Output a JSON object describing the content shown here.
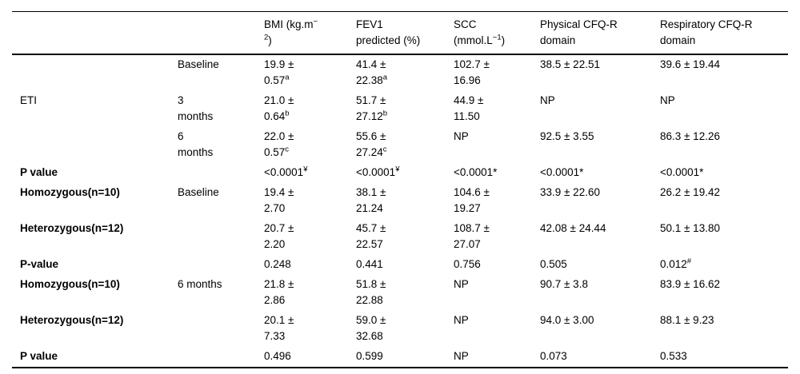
{
  "colors": {
    "background": "#ffffff",
    "text": "#000000",
    "rule": "#000000"
  },
  "table": {
    "columns": [
      {
        "id": "group",
        "header": []
      },
      {
        "id": "time",
        "header": []
      },
      {
        "id": "bmi",
        "header": [
          {
            "t": "BMI (kg.m"
          },
          {
            "t": "−",
            "sup": true
          },
          {
            "t": "\n"
          },
          {
            "t": "2",
            "sup": true
          },
          {
            "t": ")"
          }
        ]
      },
      {
        "id": "fev1",
        "header": [
          {
            "t": "FEV1\npredicted (%)"
          }
        ]
      },
      {
        "id": "scc",
        "header": [
          {
            "t": "SCC\n(mmol.L"
          },
          {
            "t": "−1",
            "sup": true
          },
          {
            "t": ")"
          }
        ]
      },
      {
        "id": "physical",
        "header": [
          {
            "t": "Physical CFQ-R\ndomain"
          }
        ]
      },
      {
        "id": "respiratory",
        "header": [
          {
            "t": "Respiratory CFQ-R\ndomain"
          }
        ]
      }
    ],
    "rows": [
      {
        "label": "",
        "label_bold": false,
        "time": "Baseline",
        "cells": [
          [
            {
              "t": "19.9 ±\n0.57"
            },
            {
              "t": "a",
              "sup": true
            }
          ],
          [
            {
              "t": "41.4 ±\n22.38"
            },
            {
              "t": "a",
              "sup": true
            }
          ],
          [
            {
              "t": "102.7 ±\n16.96"
            }
          ],
          [
            {
              "t": "38.5 ± 22.51"
            }
          ],
          [
            {
              "t": "39.6 ± 19.44"
            }
          ]
        ]
      },
      {
        "label": "ETI",
        "label_bold": false,
        "time": "3\nmonths",
        "cells": [
          [
            {
              "t": "21.0 ±\n0.64"
            },
            {
              "t": "b",
              "sup": true
            }
          ],
          [
            {
              "t": "51.7 ±\n27.12"
            },
            {
              "t": "b",
              "sup": true
            }
          ],
          [
            {
              "t": "44.9 ±\n11.50"
            }
          ],
          [
            {
              "t": "NP"
            }
          ],
          [
            {
              "t": "NP"
            }
          ]
        ]
      },
      {
        "label": "",
        "label_bold": false,
        "time": "6\nmonths",
        "cells": [
          [
            {
              "t": "22.0 ±\n0.57"
            },
            {
              "t": "c",
              "sup": true
            }
          ],
          [
            {
              "t": "55.6 ±\n27.24"
            },
            {
              "t": "c",
              "sup": true
            }
          ],
          [
            {
              "t": "NP"
            }
          ],
          [
            {
              "t": "92.5 ± 3.55"
            }
          ],
          [
            {
              "t": "86.3 ± 12.26"
            }
          ]
        ]
      },
      {
        "label": "P value",
        "label_bold": true,
        "time": "",
        "cells": [
          [
            {
              "t": "<0.0001"
            },
            {
              "t": "¥",
              "sup": true
            }
          ],
          [
            {
              "t": "<0.0001"
            },
            {
              "t": "¥",
              "sup": true
            }
          ],
          [
            {
              "t": "<0.0001*"
            }
          ],
          [
            {
              "t": "<0.0001*"
            }
          ],
          [
            {
              "t": "<0.0001*"
            }
          ]
        ]
      },
      {
        "label": "Homozygous(n=10)",
        "label_bold": true,
        "time": "Baseline",
        "cells": [
          [
            {
              "t": "19.4 ±\n2.70"
            }
          ],
          [
            {
              "t": "38.1 ±\n21.24"
            }
          ],
          [
            {
              "t": "104.6 ±\n19.27"
            }
          ],
          [
            {
              "t": "33.9 ± 22.60"
            }
          ],
          [
            {
              "t": "26.2 ± 19.42"
            }
          ]
        ]
      },
      {
        "label": "Heterozygous(n=12)",
        "label_bold": true,
        "time": "",
        "cells": [
          [
            {
              "t": "20.7 ±\n2.20"
            }
          ],
          [
            {
              "t": "45.7 ±\n22.57"
            }
          ],
          [
            {
              "t": "108.7 ±\n27.07"
            }
          ],
          [
            {
              "t": "42.08 ± 24.44"
            }
          ],
          [
            {
              "t": "50.1 ± 13.80"
            }
          ]
        ]
      },
      {
        "label": "P-value",
        "label_bold": true,
        "time": "",
        "cells": [
          [
            {
              "t": "0.248"
            }
          ],
          [
            {
              "t": "0.441"
            }
          ],
          [
            {
              "t": "0.756"
            }
          ],
          [
            {
              "t": "0.505"
            }
          ],
          [
            {
              "t": "0.012"
            },
            {
              "t": "#",
              "sup": true
            }
          ]
        ]
      },
      {
        "label": "Homozygous(n=10)",
        "label_bold": true,
        "time": "6 months",
        "cells": [
          [
            {
              "t": "21.8 ±\n2.86"
            }
          ],
          [
            {
              "t": "51.8 ±\n22.88"
            }
          ],
          [
            {
              "t": "NP"
            }
          ],
          [
            {
              "t": "90.7 ± 3.8"
            }
          ],
          [
            {
              "t": "83.9 ± 16.62"
            }
          ]
        ]
      },
      {
        "label": "Heterozygous(n=12)",
        "label_bold": true,
        "time": "",
        "cells": [
          [
            {
              "t": "20.1 ±\n7.33"
            }
          ],
          [
            {
              "t": "59.0 ±\n32.68"
            }
          ],
          [
            {
              "t": "NP"
            }
          ],
          [
            {
              "t": "94.0 ± 3.00"
            }
          ],
          [
            {
              "t": "88.1 ± 9.23"
            }
          ]
        ]
      },
      {
        "label": "P value",
        "label_bold": true,
        "time": "",
        "cells": [
          [
            {
              "t": "0.496"
            }
          ],
          [
            {
              "t": "0.599"
            }
          ],
          [
            {
              "t": "NP"
            }
          ],
          [
            {
              "t": "0.073"
            }
          ],
          [
            {
              "t": "0.533"
            }
          ]
        ]
      }
    ]
  }
}
